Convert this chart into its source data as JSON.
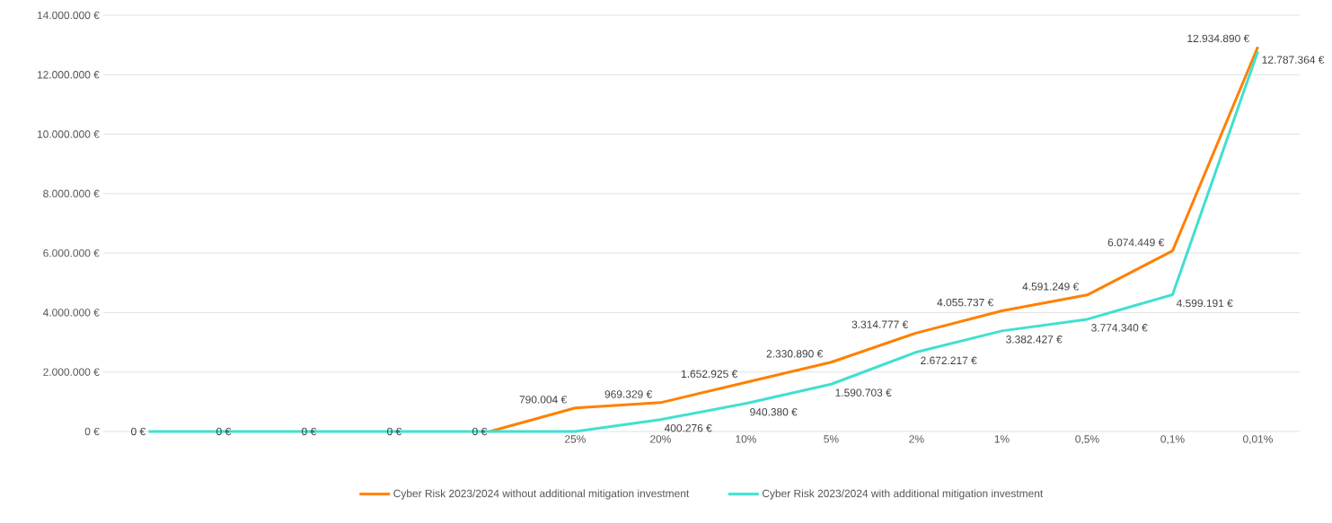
{
  "chart_data": {
    "type": "line",
    "categories": [
      null,
      null,
      null,
      null,
      null,
      "25%",
      "20%",
      "10%",
      "5%",
      "2%",
      "1%",
      "0,5%",
      "0,1%",
      "0,01%"
    ],
    "series": [
      {
        "name": "Cyber Risk 2023/2024 without additional mitigation investment",
        "color": "#ff8000",
        "values": [
          null,
          null,
          null,
          null,
          0,
          790004,
          969329,
          1652925,
          2330890,
          3314777,
          4055737,
          4591249,
          6074449,
          12934890
        ],
        "value_labels": [
          null,
          null,
          null,
          null,
          null,
          "790.004 €",
          "969.329 €",
          "1.652.925 €",
          "2.330.890 €",
          "3.314.777 €",
          "4.055.737 €",
          "4.591.249 €",
          "6.074.449 €",
          "12.934.890 €"
        ]
      },
      {
        "name": "Cyber Risk 2023/2024 with additional mitigation investment",
        "color": "#40e0d0",
        "values": [
          0,
          0,
          0,
          0,
          0,
          0,
          400276,
          940380,
          1590703,
          2672217,
          3382427,
          3774340,
          4599191,
          12787364
        ],
        "value_labels": [
          "0 €",
          "0 €",
          "0 €",
          "0 €",
          "0 €",
          null,
          "400.276 €",
          "940.380 €",
          "1.590.703 €",
          "2.672.217 €",
          "3.382.427 €",
          "3.774.340 €",
          "4.599.191 €",
          "12.787.364 €"
        ]
      }
    ],
    "ylim": [
      0,
      14000000
    ],
    "yticks": [
      {
        "value": 0,
        "label": "0 €"
      },
      {
        "value": 2000000,
        "label": "2.000.000 €"
      },
      {
        "value": 4000000,
        "label": "4.000.000 €"
      },
      {
        "value": 6000000,
        "label": "6.000.000 €"
      },
      {
        "value": 8000000,
        "label": "8.000.000 €"
      },
      {
        "value": 10000000,
        "label": "10.000.000 €"
      },
      {
        "value": 12000000,
        "label": "12.000.000 €"
      },
      {
        "value": 14000000,
        "label": "14.000.000 €"
      }
    ],
    "grid": "y",
    "legend": "bottom",
    "marker": "none",
    "line_style": "solid"
  }
}
